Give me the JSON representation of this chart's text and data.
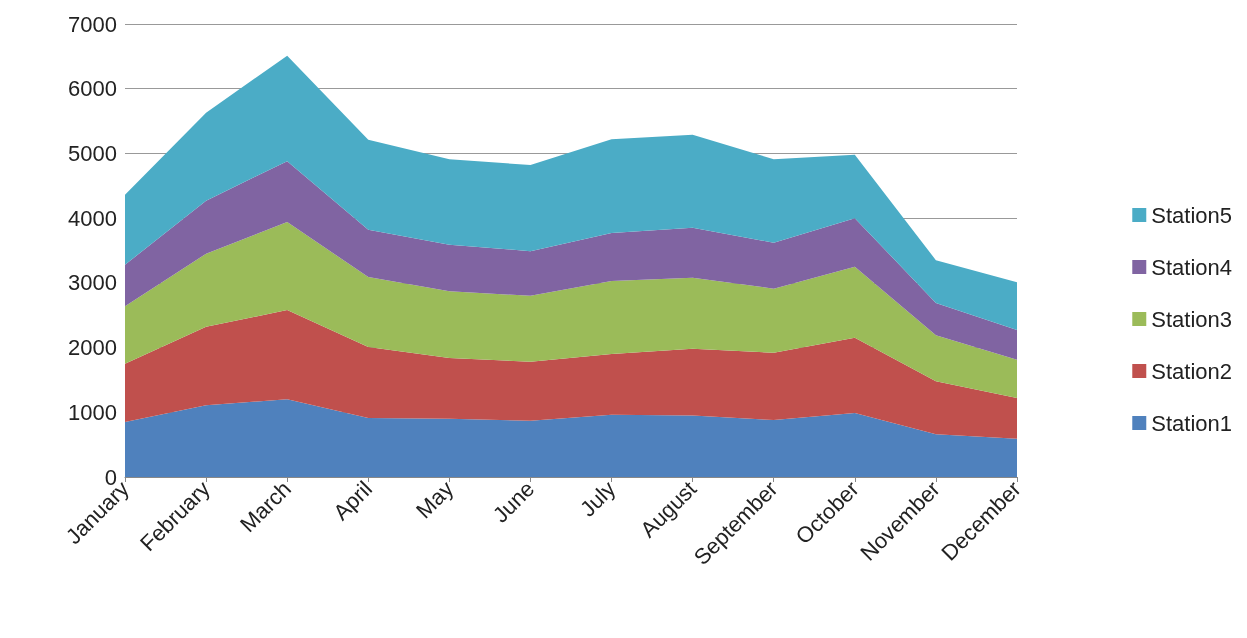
{
  "chart_data": {
    "type": "area",
    "stacked": true,
    "categories": [
      "January",
      "February",
      "March",
      "April",
      "May",
      "June",
      "July",
      "August",
      "September",
      "October",
      "November",
      "December"
    ],
    "series": [
      {
        "name": "Station1",
        "color": "#4f81bd",
        "values": [
          850,
          1110,
          1200,
          910,
          900,
          870,
          960,
          950,
          880,
          990,
          660,
          590
        ]
      },
      {
        "name": "Station2",
        "color": "#c0504d",
        "values": [
          900,
          1210,
          1380,
          1100,
          940,
          910,
          940,
          1030,
          1040,
          1160,
          820,
          630
        ]
      },
      {
        "name": "Station3",
        "color": "#9bbb59",
        "values": [
          890,
          1130,
          1360,
          1080,
          1030,
          1020,
          1130,
          1100,
          990,
          1100,
          710,
          590
        ]
      },
      {
        "name": "Station4",
        "color": "#8064a2",
        "values": [
          640,
          820,
          940,
          730,
          720,
          690,
          740,
          770,
          710,
          750,
          500,
          460
        ]
      },
      {
        "name": "Station5",
        "color": "#4bacc6",
        "values": [
          1080,
          1360,
          1630,
          1390,
          1320,
          1330,
          1450,
          1440,
          1290,
          980,
          660,
          740
        ]
      }
    ],
    "ylim": [
      0,
      7000
    ],
    "yticks": [
      0,
      1000,
      2000,
      3000,
      4000,
      5000,
      6000,
      7000
    ],
    "grid": "y",
    "legend": "right",
    "marker": "none"
  }
}
